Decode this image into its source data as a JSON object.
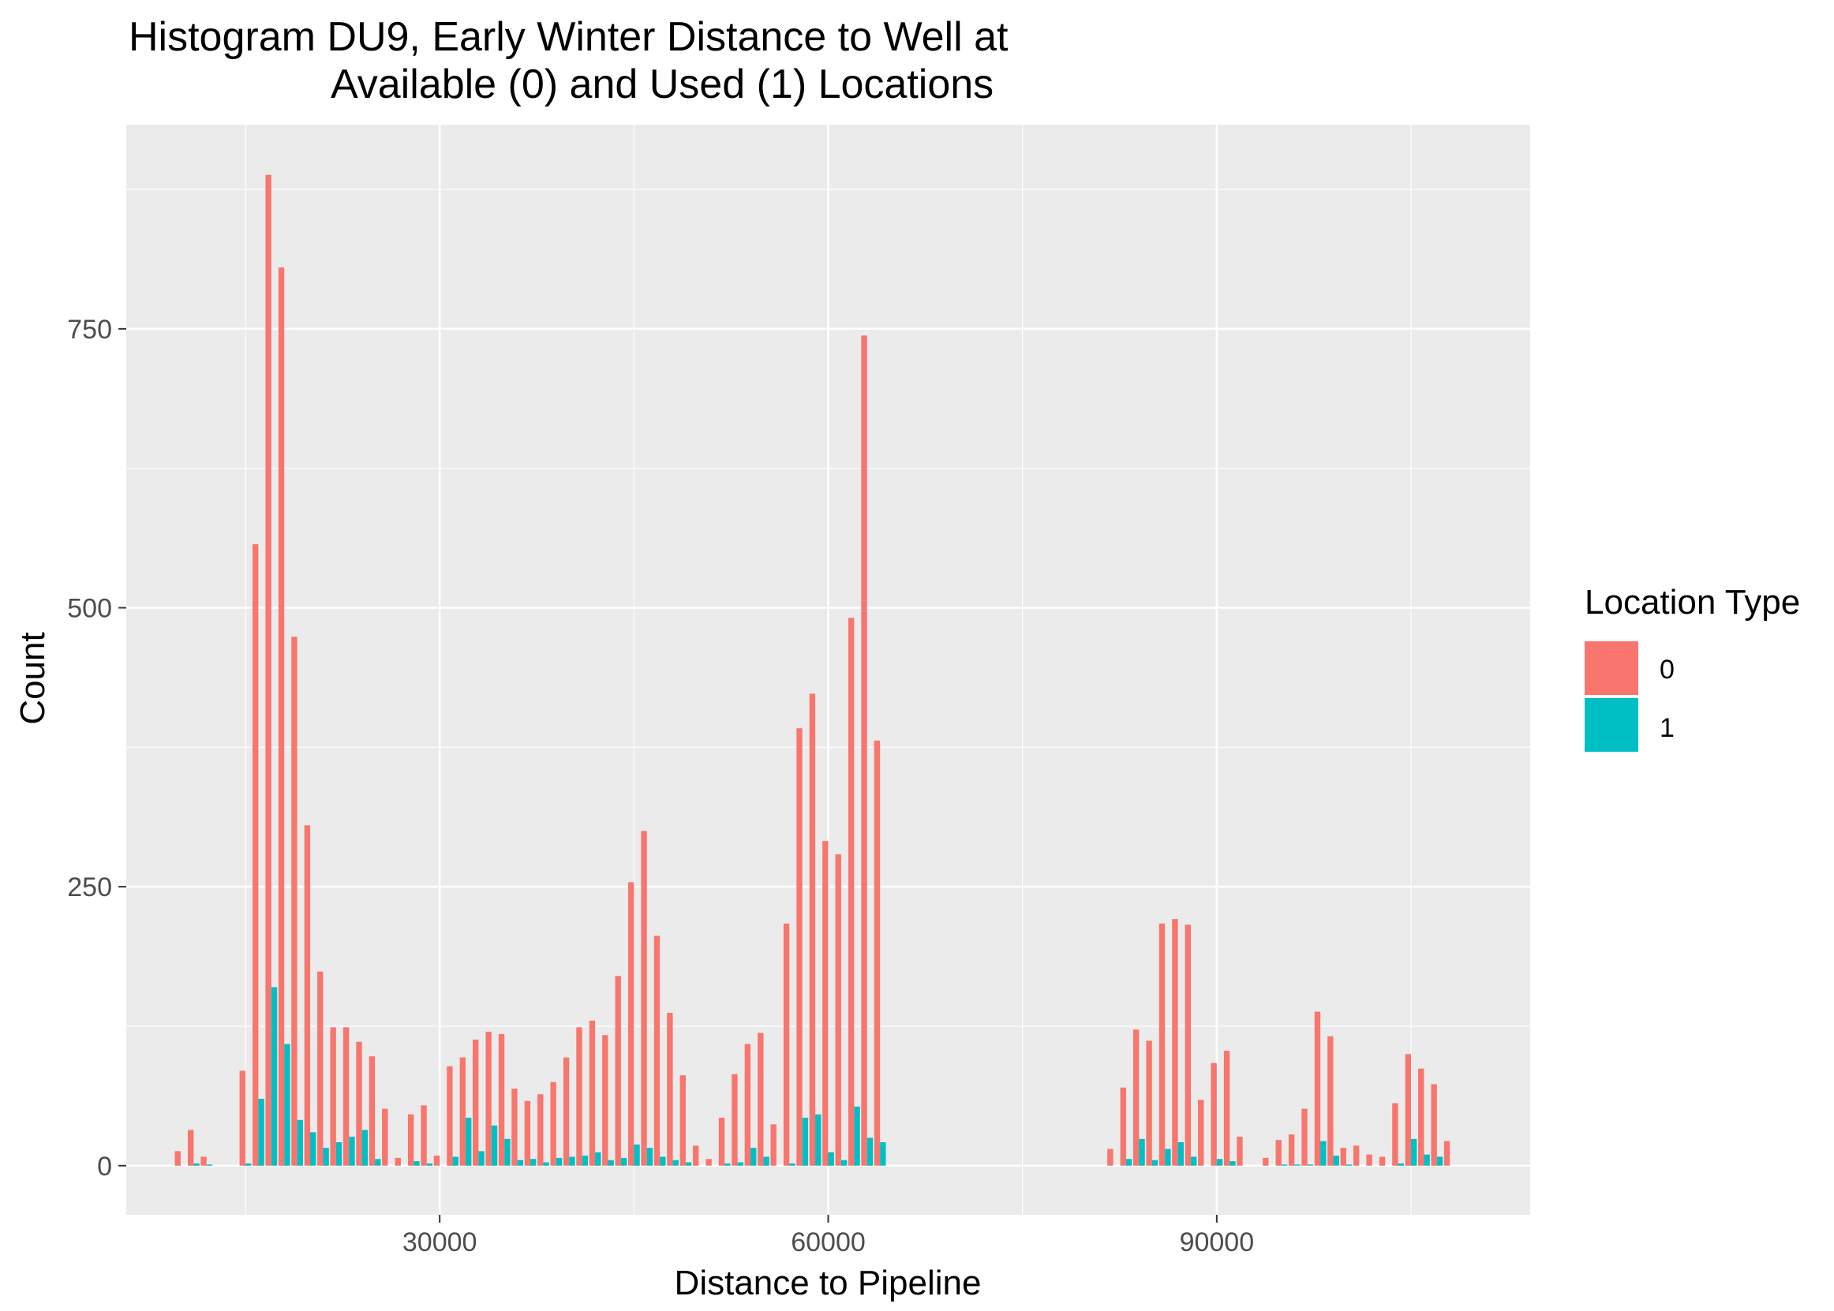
{
  "chart_data": {
    "type": "bar",
    "title_lines": [
      "Histogram DU9, Early Winter Distance to Well at",
      "Available (0) and Used (1) Locations"
    ],
    "xlabel": "Distance to Pipeline",
    "ylabel": "Count",
    "xlim": [
      5800,
      114200
    ],
    "ylim": [
      -44,
      933
    ],
    "x_ticks": [
      30000,
      60000,
      90000
    ],
    "y_ticks": [
      0,
      250,
      500,
      750
    ],
    "x_tick_labels": [
      "30000",
      "60000",
      "90000"
    ],
    "y_tick_labels": [
      "0",
      "250",
      "500",
      "750"
    ],
    "grid": true,
    "background": "#EBEBEB",
    "bin_width": 1000,
    "legend": {
      "title": "Location Type",
      "position": "right",
      "entries": [
        "0",
        "1"
      ]
    },
    "x": [
      10000,
      11000,
      12000,
      15000,
      16000,
      17000,
      18000,
      19000,
      20000,
      21000,
      22000,
      23000,
      24000,
      25000,
      26000,
      27000,
      28000,
      29000,
      30000,
      31000,
      32000,
      33000,
      34000,
      35000,
      36000,
      37000,
      38000,
      39000,
      40000,
      41000,
      42000,
      43000,
      44000,
      45000,
      46000,
      47000,
      48000,
      49000,
      50000,
      51000,
      52000,
      53000,
      54000,
      55000,
      56000,
      57000,
      58000,
      59000,
      60000,
      61000,
      62000,
      63000,
      64000,
      65000,
      82000,
      83000,
      84000,
      85000,
      86000,
      87000,
      88000,
      89000,
      90000,
      91000,
      92000,
      94000,
      95000,
      96000,
      97000,
      98000,
      99000,
      100000,
      101000,
      102000,
      103000,
      104000,
      105000,
      106000,
      107000,
      108000
    ],
    "series": [
      {
        "name": "0",
        "color": "#F8766D",
        "values": [
          13,
          32,
          8,
          85,
          557,
          888,
          805,
          474,
          305,
          174,
          124,
          124,
          111,
          98,
          51,
          7,
          46,
          54,
          9,
          89,
          97,
          113,
          120,
          118,
          69,
          58,
          64,
          75,
          97,
          124,
          130,
          117,
          170,
          254,
          300,
          206,
          137,
          81,
          18,
          6,
          43,
          82,
          109,
          119,
          37,
          217,
          392,
          423,
          291,
          279,
          491,
          744,
          381,
          0,
          15,
          70,
          122,
          112,
          217,
          221,
          216,
          59,
          92,
          103,
          26,
          7,
          23,
          28,
          51,
          138,
          116,
          16,
          18,
          10,
          8,
          56,
          100,
          87,
          73,
          22
        ]
      },
      {
        "name": "1",
        "color": "#00BFC4",
        "values": [
          0,
          2,
          1,
          2,
          60,
          160,
          109,
          41,
          30,
          16,
          21,
          26,
          32,
          6,
          0,
          0,
          4,
          2,
          0,
          8,
          43,
          13,
          36,
          24,
          5,
          6,
          3,
          7,
          8,
          9,
          12,
          5,
          7,
          19,
          16,
          8,
          5,
          3,
          0,
          0,
          2,
          3,
          16,
          8,
          0,
          2,
          43,
          46,
          12,
          5,
          53,
          25,
          21,
          0,
          0,
          6,
          24,
          5,
          15,
          21,
          8,
          0,
          6,
          4,
          0,
          0,
          1,
          1,
          1,
          22,
          9,
          1,
          0,
          0,
          0,
          2,
          24,
          10,
          8,
          0
        ]
      }
    ]
  }
}
